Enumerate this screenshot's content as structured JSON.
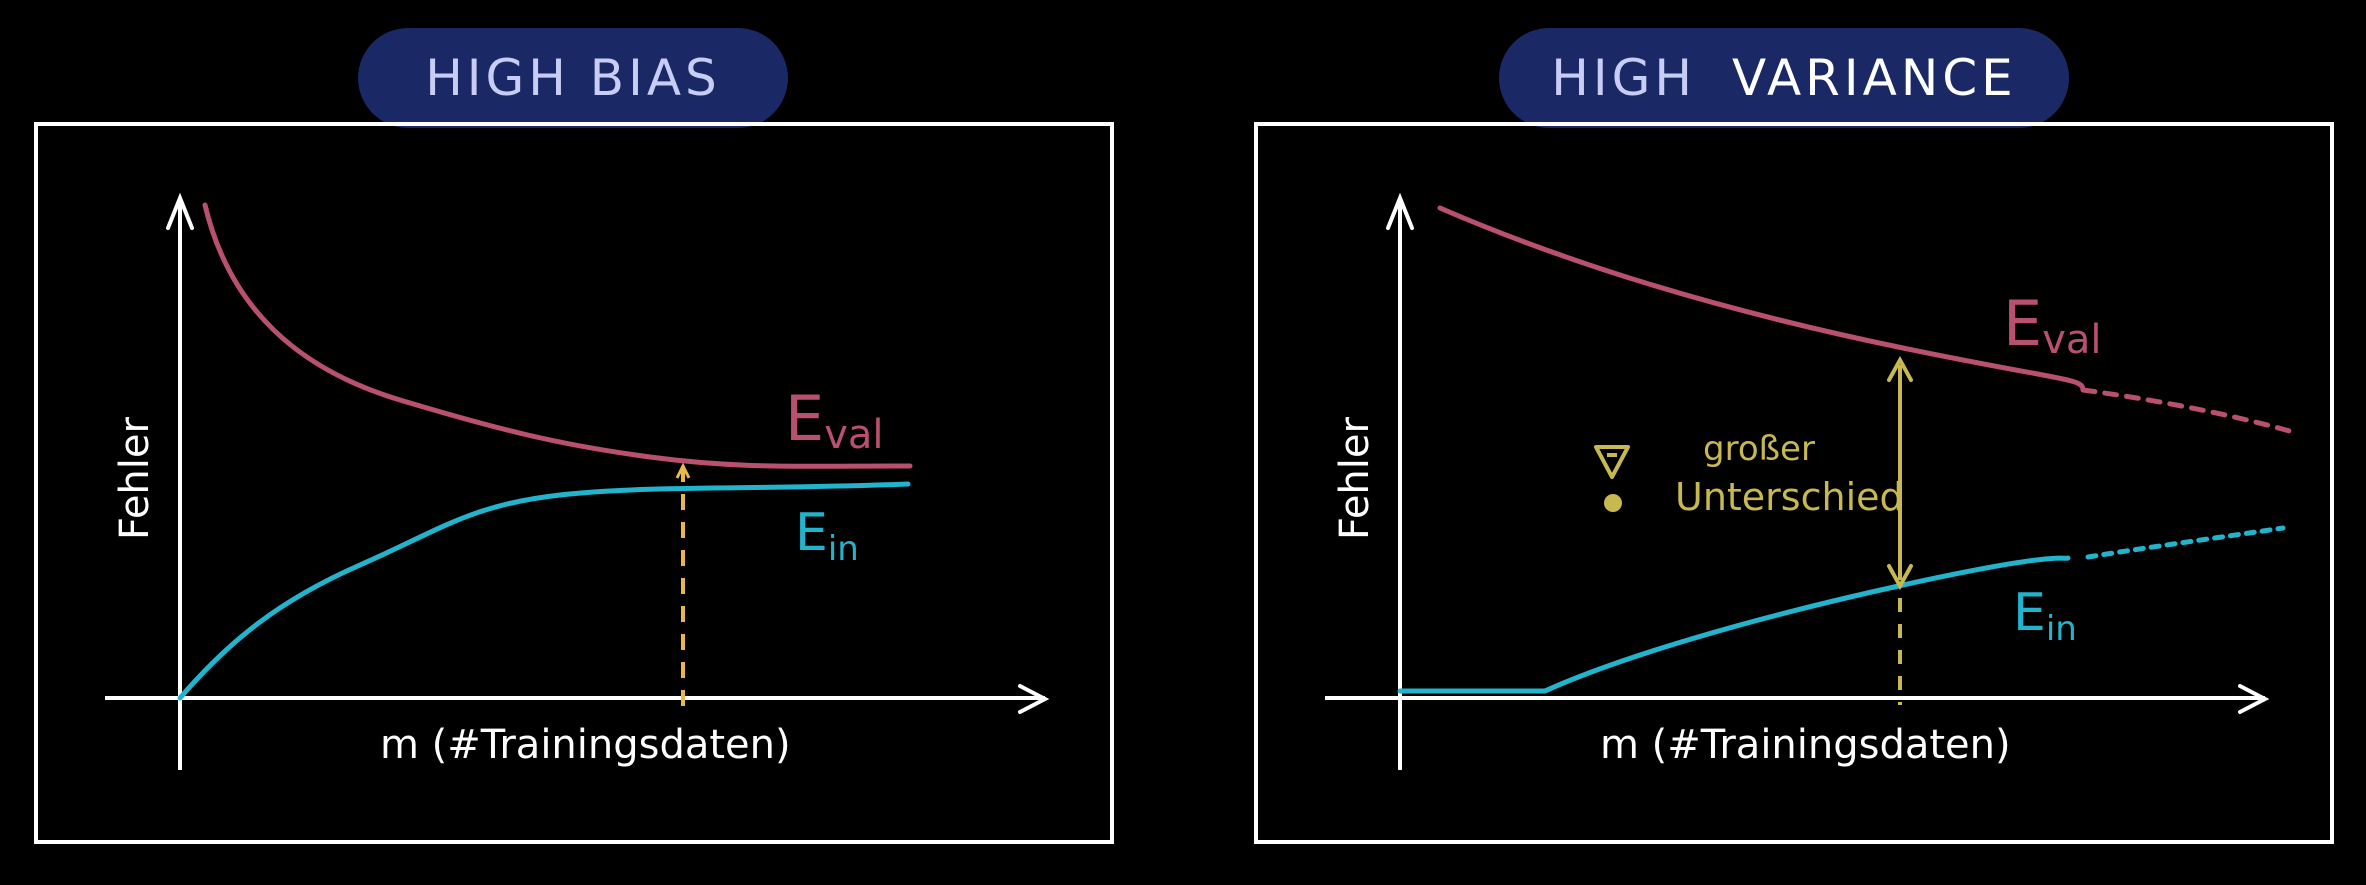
{
  "panels": {
    "left": {
      "title": "HIGH BIAS",
      "xlabel": "m (#Trainingsdaten)",
      "ylabel": "Fehler",
      "label_eval": {
        "main": "E",
        "sub": "val"
      },
      "label_ein": {
        "main": "E",
        "sub": "in"
      }
    },
    "right": {
      "title_a": "HIGH",
      "title_b": "VARIANCE",
      "xlabel": "m (#Trainingsdaten)",
      "ylabel": "Fehler",
      "label_eval": {
        "main": "E",
        "sub": "val"
      },
      "label_ein": {
        "main": "E",
        "sub": "in"
      },
      "annotation_line1": "großer",
      "annotation_line2": "Unterschied"
    }
  },
  "colors": {
    "eval": "#b8506e",
    "ein": "#22b4cc",
    "marker_left": "#e8b84a",
    "marker_right": "#c8b850",
    "title_bg": "#1a2866",
    "axis": "#ffffff"
  },
  "icons": [
    "warning-triangle-icon",
    "dot-icon",
    "double-arrow-icon"
  ]
}
